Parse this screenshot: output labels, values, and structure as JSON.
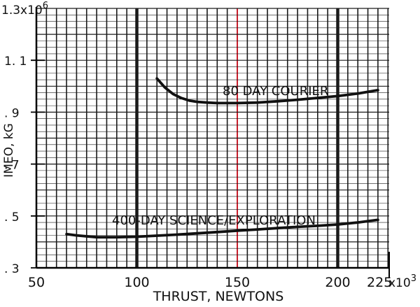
{
  "chart_data": {
    "type": "line",
    "xlabel": "THRUST, NEWTONS",
    "ylabel": "IMEO, kG",
    "xlim": [
      50,
      225
    ],
    "ylim": [
      0.3,
      1.3
    ],
    "x_unit_label": "x10",
    "x_unit_exponent": "3",
    "y_unit_label": "1.3x10",
    "y_unit_exponent": "6",
    "x_ticks": [
      {
        "value": 50,
        "label": "50"
      },
      {
        "value": 100,
        "label": "100"
      },
      {
        "value": 150,
        "label": "150"
      },
      {
        "value": 200,
        "label": "200"
      },
      {
        "value": 225,
        "label": "225"
      }
    ],
    "y_ticks": [
      {
        "value": 0.3,
        "label": ". 3"
      },
      {
        "value": 0.5,
        "label": ". 5"
      },
      {
        "value": 0.7,
        "label": ". 7"
      },
      {
        "value": 0.9,
        "label": ". 9"
      },
      {
        "value": 1.1,
        "label": "1. 1"
      }
    ],
    "highlight_x": 150,
    "bold_x": [
      100,
      200
    ],
    "grid": true,
    "series": [
      {
        "name": "80 DAY COURIER",
        "x": [
          110,
          114,
          118,
          122,
          126,
          130,
          135,
          140,
          145,
          150,
          160,
          170,
          180,
          190,
          200,
          210,
          220
        ],
        "y": [
          1.03,
          0.995,
          0.97,
          0.955,
          0.945,
          0.94,
          0.937,
          0.935,
          0.935,
          0.935,
          0.937,
          0.942,
          0.948,
          0.955,
          0.962,
          0.972,
          0.985
        ]
      },
      {
        "name": "400-DAY SCIENCE/EXPLORATION",
        "x": [
          65,
          70,
          80,
          90,
          100,
          110,
          120,
          130,
          140,
          150,
          160,
          170,
          180,
          190,
          200,
          210,
          220
        ],
        "y": [
          0.43,
          0.425,
          0.418,
          0.418,
          0.42,
          0.424,
          0.428,
          0.433,
          0.438,
          0.443,
          0.448,
          0.453,
          0.458,
          0.462,
          0.467,
          0.475,
          0.485
        ]
      }
    ],
    "colors": {
      "line": "#111111",
      "grid": "#1a1a1a",
      "highlight": "#c81e2c"
    }
  }
}
